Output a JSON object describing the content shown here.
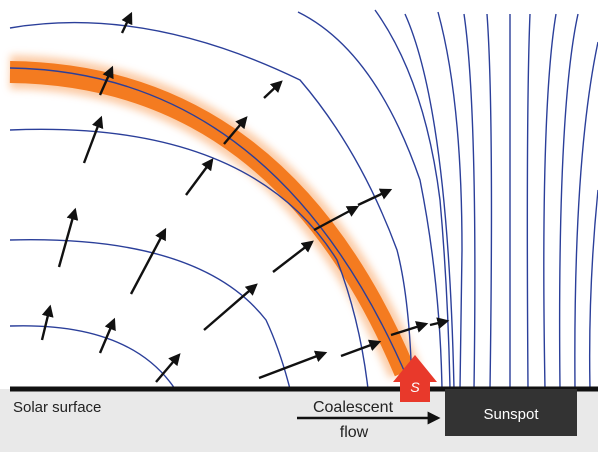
{
  "labels": {
    "surface": "Solar surface",
    "flow_line1": "Coalescent",
    "flow_line2": "flow",
    "sunspot": "Sunspot",
    "marker": "S"
  },
  "colors": {
    "field_line": "#2b3f9a",
    "flux_tube": "#f47b20",
    "surface_fill": "#e9e9e9",
    "sunspot_fill": "#333333",
    "marker_fill": "#e8392b",
    "arrow": "#111111"
  }
}
